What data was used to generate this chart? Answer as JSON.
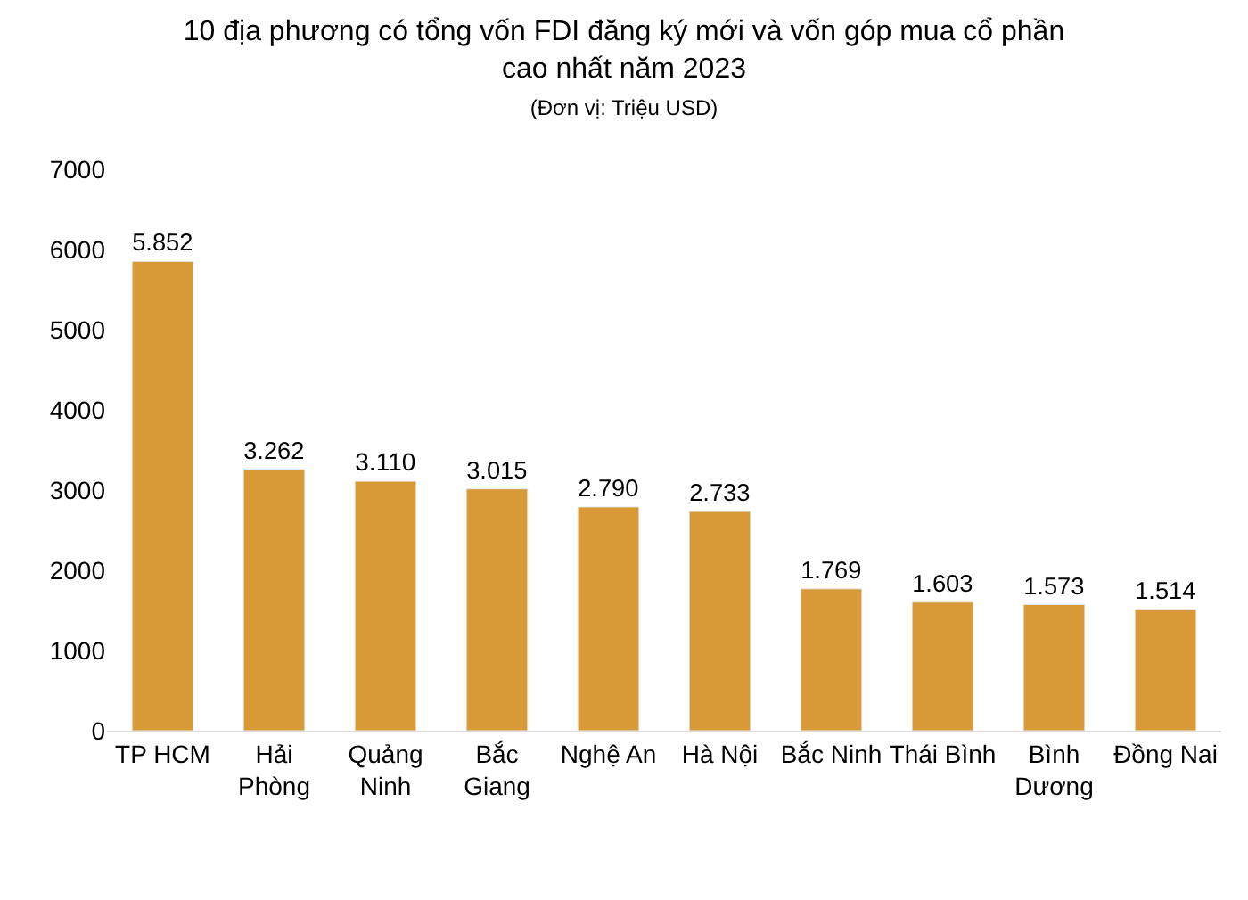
{
  "chart_data": {
    "type": "bar",
    "title": "10 địa phương có tổng vốn FDI đăng ký mới và vốn góp mua cổ phần\ncao nhất năm 2023",
    "subtitle": "(Đơn vị: Triệu USD)",
    "categories": [
      "TP HCM",
      "Hải\nPhòng",
      "Quảng\nNinh",
      "Bắc\nGiang",
      "Nghệ An",
      "Hà Nội",
      "Bắc Ninh",
      "Thái Bình",
      "Bình\nDương",
      "Đồng Nai"
    ],
    "values": [
      5852,
      3262,
      3110,
      3015,
      2790,
      2733,
      1769,
      1603,
      1573,
      1514
    ],
    "value_labels": [
      "5.852",
      "3.262",
      "3.110",
      "3.015",
      "2.790",
      "2.733",
      "1.769",
      "1.603",
      "1.573",
      "1.514"
    ],
    "color": "#d89a36",
    "ylim": [
      0,
      7000
    ],
    "yticks": [
      0,
      1000,
      2000,
      3000,
      4000,
      5000,
      6000,
      7000
    ],
    "grid": false,
    "legend": false
  }
}
